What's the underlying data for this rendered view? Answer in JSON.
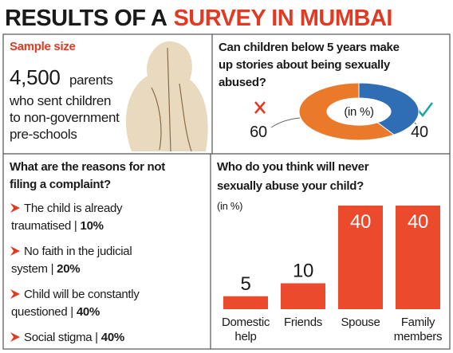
{
  "title_parts": [
    "RESULTS OF A",
    "SURVEY IN MUMBAI"
  ],
  "sample": {
    "label": "Sample size",
    "number": "4,500",
    "unit": "parents",
    "lines": [
      "who sent children",
      "to non-government",
      "pre-schools"
    ]
  },
  "reasons": {
    "title_lines": [
      "What are the reasons for not",
      "filing a complaint?"
    ],
    "items": [
      {
        "lines": [
          "The child is already",
          "traumatised |"
        ],
        "value": "10%"
      },
      {
        "lines": [
          "No faith in the judicial",
          "system |"
        ],
        "value": "20%"
      },
      {
        "lines": [
          "Child will be constantly",
          "questioned |"
        ],
        "value": "40%"
      },
      {
        "lines": [
          "Social stigma |"
        ],
        "value": "40%"
      }
    ]
  },
  "chart_data": [
    {
      "type": "donut",
      "title_lines": [
        "Can children below 5 years make",
        "up stories about being sexually",
        "abused?"
      ],
      "unit_label": "(in %)",
      "values": [
        60,
        40
      ],
      "colors": [
        "#ea7a2a",
        "#2f6db5"
      ]
    },
    {
      "type": "bar",
      "title_lines": [
        "Who do you think will never",
        "sexually abuse your child?"
      ],
      "unit_label": "(in %)",
      "categories": [
        [
          "Domestic",
          "help"
        ],
        [
          "Friends"
        ],
        [
          "Spouse"
        ],
        [
          "Family",
          "members"
        ]
      ],
      "values": [
        5,
        10,
        40,
        40
      ],
      "color": "#ec4a2c"
    }
  ]
}
